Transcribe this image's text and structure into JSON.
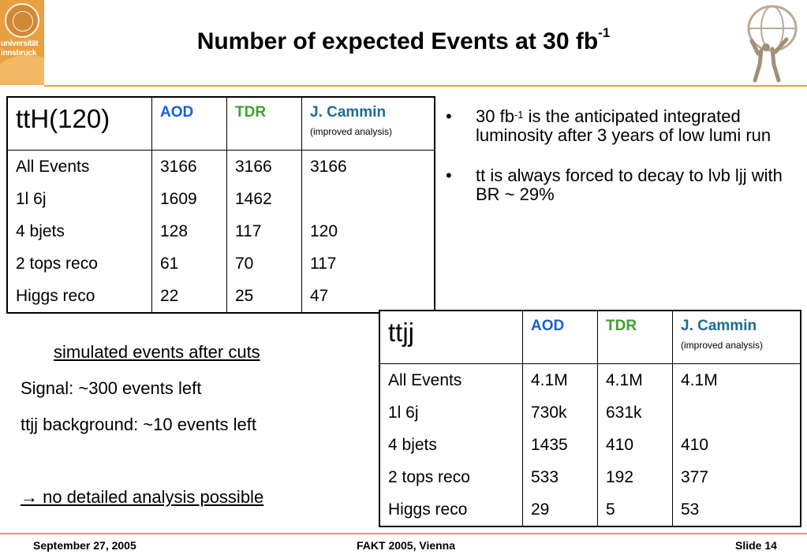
{
  "logos": {
    "left_lines": [
      "universität",
      "innsbruck"
    ]
  },
  "title": {
    "main": "Number of expected Events at 30 fb",
    "sup": "-1"
  },
  "table1": {
    "label": "ttH(120)",
    "headers": [
      "AOD",
      "TDR",
      "J. Cammin"
    ],
    "header_note": "(improved analysis)",
    "rows": [
      {
        "name": "All Events",
        "aod": "3166",
        "tdr": "3166",
        "cammin": "3166"
      },
      {
        "name": "1l 6j",
        "aod": "1609",
        "tdr": "1462",
        "cammin": ""
      },
      {
        "name": "4 bjets",
        "aod": "128",
        "tdr": "117",
        "cammin": "120"
      },
      {
        "name": "2 tops reco",
        "aod": "61",
        "tdr": "70",
        "cammin": "117"
      },
      {
        "name": "Higgs reco",
        "aod": "22",
        "tdr": "25",
        "cammin": "47"
      }
    ]
  },
  "table2": {
    "label": "ttjj",
    "headers": [
      "AOD",
      "TDR",
      "J. Cammin"
    ],
    "header_note": "(improved analysis)",
    "rows": [
      {
        "name": "All Events",
        "aod": "4.1M",
        "tdr": "4.1M",
        "cammin": "4.1M"
      },
      {
        "name": "1l 6j",
        "aod": "730k",
        "tdr": "631k",
        "cammin": ""
      },
      {
        "name": "4 bjets",
        "aod": "1435",
        "tdr": "410",
        "cammin": "410"
      },
      {
        "name": "2 tops reco",
        "aod": "533",
        "tdr": "192",
        "cammin": "377"
      },
      {
        "name": "Higgs reco",
        "aod": "29",
        "tdr": "5",
        "cammin": "53"
      }
    ]
  },
  "bullets": {
    "b1_pre": "30 fb",
    "b1_sup": "-1",
    "b1_post": " is the anticipated integrated luminosity after 3 years of low lumi run",
    "b2": "tt is always forced to decay to lνb ljj with BR ~ 29%"
  },
  "notes": {
    "heading": "simulated events after cuts",
    "signal": "Signal: ~300 events left",
    "background": "ttjj background: ~10 events left",
    "conclusion": "→ no detailed analysis possible"
  },
  "footer": {
    "date": "September 27, 2005",
    "event": "FAKT 2005, Vienna",
    "slide": "Slide 14"
  },
  "colors": {
    "accent": "#e8a040",
    "aod": "#1a5fd0",
    "tdr": "#3fa02f",
    "cammin": "#1b6e8f"
  }
}
